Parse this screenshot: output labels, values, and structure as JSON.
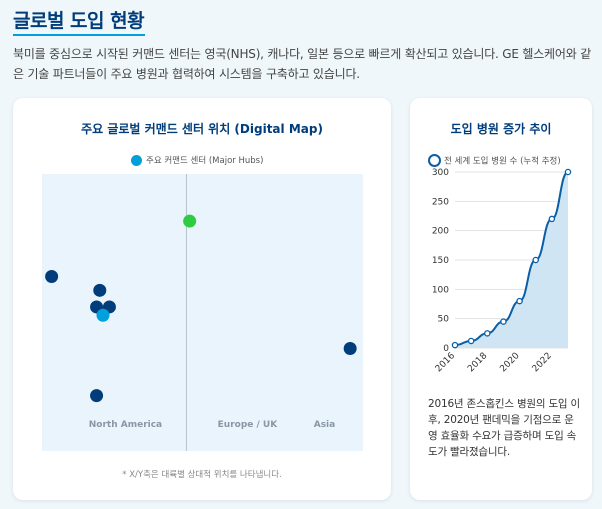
{
  "header": {
    "title": "글로벌 도입 현황",
    "intro": "북미를 중심으로 시작된 커맨드 센터는 영국(NHS), 캐나다, 일본 등으로 빠르게 확산되고 있습니다. GE 헬스케어와 같은 기술 파트너들이 주요 병원과 협력하여 시스템을 구축하고 있습니다."
  },
  "map_card": {
    "title": "주요 글로벌 커맨드 센터 위치 (Digital Map)",
    "legend_label": "주요 커맨드 센터 (Major Hubs)",
    "note": "* X/Y축은 대륙별 상대적 위치를 나타냅니다.",
    "regions": [
      "North America",
      "Europe / UK",
      "Asia"
    ]
  },
  "trend_card": {
    "title": "도입 병원 증가 추이",
    "legend_label": "전 세계 도입 병원 수 (누적 추정)",
    "summary": "2016년 존스홉킨스 병원의 도입 이후, 2020년 팬데믹을 기점으로 운영 효율화 수요가 급증하며 도입 속도가 빨라졌습니다."
  },
  "colors": {
    "primary": "#003d7a",
    "accent": "#00a0dc",
    "hub_dark": "#003d7a",
    "hub_green": "#2ecc40",
    "line": "#0a5ea8",
    "area": "#cfe5f3"
  },
  "chart_data": [
    {
      "type": "scatter",
      "title": "주요 글로벌 커맨드 센터 위치 (Digital Map)",
      "xlabel": "",
      "ylabel": "",
      "xlim": [
        0,
        100
      ],
      "ylim": [
        0,
        100
      ],
      "x_divider": 45,
      "legend": [
        "주요 커맨드 센터 (Major Hubs)"
      ],
      "series": [
        {
          "name": "주요 커맨드 센터 (Major Hubs)",
          "points": [
            {
              "x": 46,
              "y": 83,
              "color": "#2ecc40"
            },
            {
              "x": 3,
              "y": 63,
              "color": "#003d7a"
            },
            {
              "x": 18,
              "y": 58,
              "color": "#003d7a"
            },
            {
              "x": 17,
              "y": 52,
              "color": "#003d7a"
            },
            {
              "x": 21,
              "y": 52,
              "color": "#003d7a"
            },
            {
              "x": 19,
              "y": 49,
              "color": "#00a0dc"
            },
            {
              "x": 96,
              "y": 37,
              "color": "#003d7a"
            },
            {
              "x": 17,
              "y": 20,
              "color": "#003d7a"
            }
          ]
        }
      ]
    },
    {
      "type": "area",
      "title": "도입 병원 증가 추이",
      "xlabel": "",
      "ylabel": "",
      "x": [
        2016,
        2017,
        2018,
        2019,
        2020,
        2021,
        2022,
        2023
      ],
      "xticks": [
        2016,
        2018,
        2020,
        2022
      ],
      "yticks": [
        0,
        50,
        100,
        150,
        200,
        250,
        300
      ],
      "ylim": [
        0,
        300
      ],
      "legend": [
        "전 세계 도입 병원 수 (누적 추정)"
      ],
      "series": [
        {
          "name": "전 세계 도입 병원 수 (누적 추정)",
          "values": [
            5,
            12,
            25,
            45,
            80,
            150,
            220,
            300
          ]
        }
      ]
    }
  ]
}
